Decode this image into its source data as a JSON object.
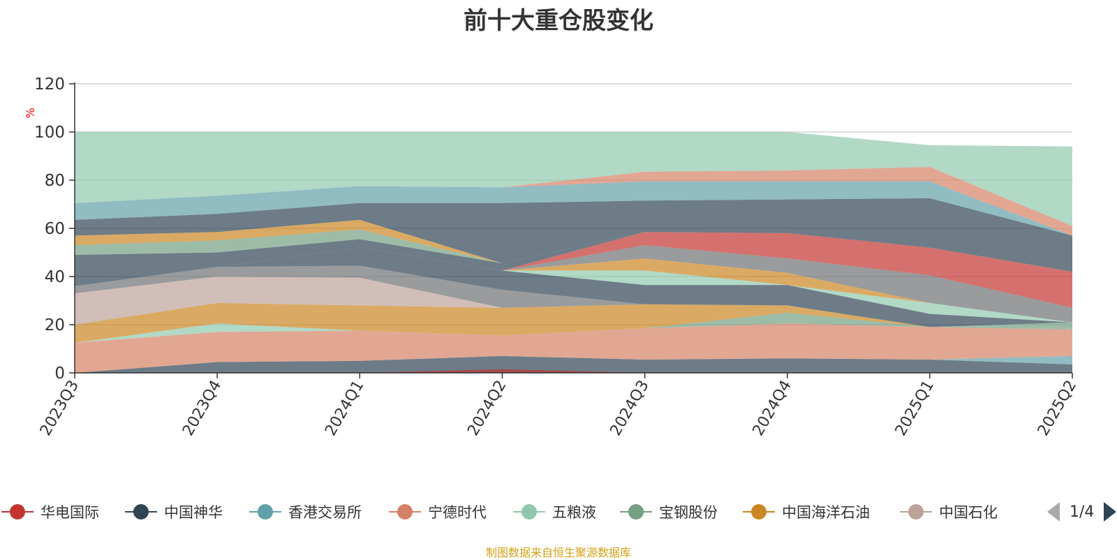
{
  "chart_data": {
    "type": "area",
    "title": "前十大重仓股变化",
    "ylabel": "%",
    "ylim": [
      0,
      120
    ],
    "yticks": [
      "0",
      "20",
      "40",
      "60",
      "80",
      "100",
      "120"
    ],
    "grid": true,
    "categories": [
      "2023Q3",
      "2023Q4",
      "2024Q1",
      "2024Q2",
      "2024Q3",
      "2024Q4",
      "2025Q1",
      "2025Q2"
    ],
    "bands": [
      {
        "color": "#2f4554",
        "lower": [
          0,
          0,
          0,
          0,
          0,
          0,
          0,
          0
        ],
        "upper": [
          0,
          4.5,
          5,
          7,
          5.5,
          6,
          5.5,
          3.5
        ]
      },
      {
        "color": "#c23531",
        "lower": [
          0,
          0,
          0,
          0,
          0,
          0,
          0,
          0
        ],
        "upper": [
          0,
          0,
          0,
          1.5,
          0,
          0,
          0,
          0
        ]
      },
      {
        "color": "#61a0a8",
        "lower": [
          0,
          4.5,
          5,
          7,
          5.5,
          6,
          5.5,
          3.5
        ],
        "upper": [
          0,
          4.5,
          5,
          7,
          5.5,
          6,
          5.5,
          7
        ]
      },
      {
        "color": "#d48265",
        "lower": [
          0,
          4.5,
          5,
          7,
          5.5,
          6,
          5.5,
          7
        ],
        "upper": [
          12.5,
          17,
          17.5,
          15.5,
          18.5,
          20.5,
          19,
          18
        ]
      },
      {
        "color": "#91c7ae",
        "lower": [
          12.5,
          17,
          17.5,
          15.5,
          18.5,
          20.5,
          19,
          18
        ],
        "upper": [
          12.5,
          20.5,
          17.5,
          15.5,
          18.5,
          20.5,
          19,
          18
        ]
      },
      {
        "color": "#749f83",
        "lower": [
          12.5,
          20.5,
          17.5,
          15.5,
          18.5,
          20.5,
          19,
          18
        ],
        "upper": [
          12.5,
          20.5,
          17.5,
          15.5,
          18.5,
          25,
          19,
          21
        ]
      },
      {
        "color": "#ca8622",
        "lower": [
          12.5,
          20.5,
          17.5,
          15.5,
          18.5,
          25,
          19,
          21
        ],
        "upper": [
          20,
          29,
          28,
          27,
          28.5,
          28,
          19,
          21
        ]
      },
      {
        "color": "#bda29a",
        "lower": [
          20,
          29,
          28,
          27,
          28.5,
          28,
          19,
          21
        ],
        "upper": [
          33,
          40,
          39.5,
          27,
          28.5,
          28,
          19,
          21
        ]
      },
      {
        "color": "#6e7074",
        "lower": [
          33,
          40,
          39.5,
          27,
          28.5,
          28,
          19,
          21
        ],
        "upper": [
          36,
          44,
          44.5,
          34.5,
          28.5,
          28,
          19,
          21
        ]
      },
      {
        "color": "#2f4554",
        "lower": [
          36,
          44,
          44.5,
          34.5,
          28.5,
          28,
          19,
          21
        ],
        "upper": [
          36,
          44,
          52,
          42.5,
          36.5,
          36.5,
          24.5,
          21
        ]
      },
      {
        "color": "#91c7ae",
        "lower": [
          36,
          44,
          52,
          42.5,
          36.5,
          36.5,
          24.5,
          21
        ],
        "upper": [
          36,
          44,
          52,
          42.5,
          42.5,
          36.5,
          29,
          21
        ]
      },
      {
        "color": "#ca8622",
        "lower": [
          36,
          44,
          52,
          42.5,
          42.5,
          36.5,
          29,
          21
        ],
        "upper": [
          36,
          44,
          52,
          42.5,
          47.5,
          41.5,
          29,
          21
        ]
      },
      {
        "color": "#6e7074",
        "lower": [
          36,
          44,
          52,
          42.5,
          47.5,
          41.5,
          29,
          21
        ],
        "upper": [
          36,
          44,
          52,
          42.5,
          53,
          47.5,
          40.5,
          27
        ]
      },
      {
        "color": "#c23531",
        "lower": [
          36,
          44,
          52,
          42.5,
          53,
          47.5,
          40.5,
          27
        ],
        "upper": [
          36,
          44,
          52,
          42.5,
          58.5,
          58,
          52,
          42
        ]
      },
      {
        "color": "#bda29a",
        "lower": [
          36,
          44,
          52,
          42.5,
          58.5,
          58,
          52,
          42
        ],
        "upper": [
          36,
          44,
          52,
          42.5,
          58.5,
          58,
          52,
          42
        ]
      },
      {
        "color": "#2f4554",
        "lower": [
          36,
          44,
          52,
          42.5,
          58.5,
          58,
          52,
          42
        ],
        "upper": [
          49,
          50,
          55.5,
          45.5,
          58.5,
          58,
          52,
          42
        ]
      },
      {
        "color": "#749f83",
        "lower": [
          49,
          50,
          55.5,
          45.5,
          58.5,
          58,
          52,
          42
        ],
        "upper": [
          53,
          55,
          59.5,
          45.5,
          58.5,
          58,
          52,
          42
        ]
      },
      {
        "color": "#ca8622",
        "lower": [
          53,
          55,
          59.5,
          45.5,
          58.5,
          58,
          52,
          42
        ],
        "upper": [
          57,
          58.5,
          63.5,
          45.5,
          58.5,
          58,
          52,
          42
        ]
      },
      {
        "color": "#2f4554",
        "lower": [
          57,
          58.5,
          63.5,
          45.5,
          58.5,
          58,
          52,
          42
        ],
        "upper": [
          63.5,
          66,
          70.5,
          70.5,
          71.5,
          72,
          72.5,
          57
        ]
      },
      {
        "color": "#61a0a8",
        "lower": [
          63.5,
          66,
          70.5,
          70.5,
          71.5,
          72,
          72.5,
          57
        ],
        "upper": [
          70.5,
          73.5,
          77.5,
          77,
          79.5,
          79.5,
          79.5,
          57
        ]
      },
      {
        "color": "#d48265",
        "lower": [
          70.5,
          73.5,
          77.5,
          77,
          79.5,
          79.5,
          79.5,
          57
        ],
        "upper": [
          70.5,
          73.5,
          77.5,
          77,
          83.5,
          84,
          85.5,
          61
        ]
      },
      {
        "color": "#91c7ae",
        "lower": [
          70.5,
          73.5,
          77.5,
          77,
          83.5,
          84,
          85.5,
          61
        ],
        "upper": [
          100,
          100,
          100,
          100,
          100,
          100,
          94.5,
          94
        ]
      }
    ],
    "legend_position": "bottom",
    "legend": [
      {
        "name": "华电国际",
        "color": "#c23531"
      },
      {
        "name": "中国神华",
        "color": "#2f4554"
      },
      {
        "name": "香港交易所",
        "color": "#61a0a8"
      },
      {
        "name": "宁德时代",
        "color": "#d48265"
      },
      {
        "name": "五粮液",
        "color": "#91c7ae"
      },
      {
        "name": "宝钢股份",
        "color": "#749f83"
      },
      {
        "name": "中国海洋石油",
        "color": "#ca8622"
      },
      {
        "name": "中国石化",
        "color": "#bda29a"
      }
    ],
    "legend_page": "1/4"
  },
  "source_note": "制图数据来自恒生聚源数据库"
}
